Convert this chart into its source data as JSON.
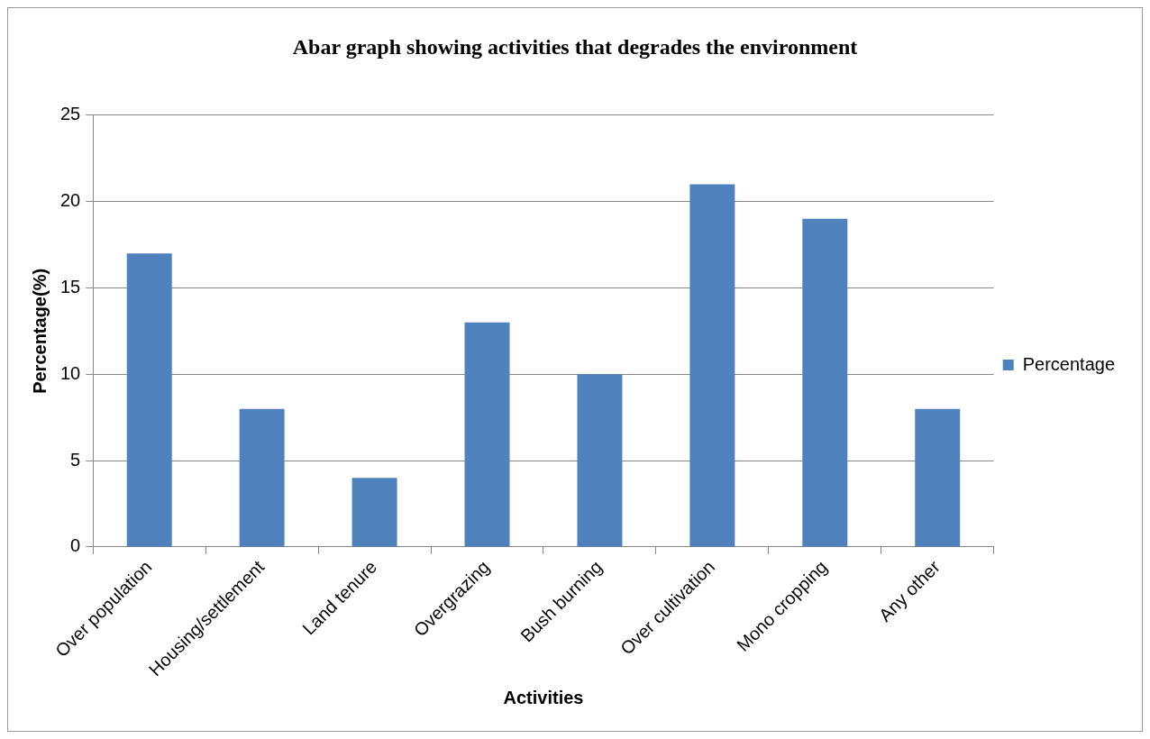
{
  "chart_data": {
    "type": "bar",
    "title": "Abar graph showing activities that degrades the environment",
    "xlabel": "Activities",
    "ylabel": "Percentage(%)",
    "categories": [
      "Over population",
      "Housing/settlement",
      "Land tenure",
      "Overgrazing",
      "Bush burning",
      "Over cultivation",
      "Mono cropping",
      "Any other"
    ],
    "series": [
      {
        "name": "Percentage",
        "color": "#4f81bd",
        "values": [
          17,
          8,
          4,
          13,
          10,
          21,
          19,
          8
        ]
      }
    ],
    "ylim": [
      0,
      25
    ],
    "yticks": [
      0,
      5,
      10,
      15,
      20,
      25
    ],
    "grid": "y",
    "legend": "right"
  }
}
